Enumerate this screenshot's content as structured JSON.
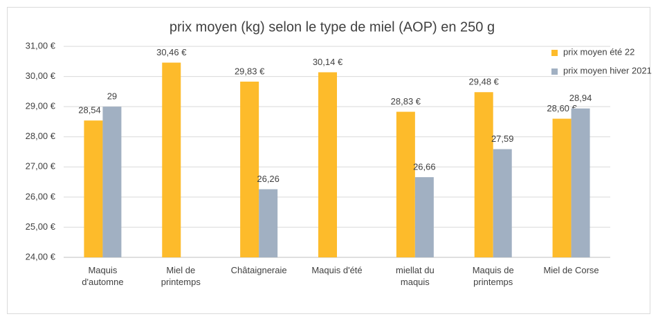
{
  "chart_data": {
    "type": "bar",
    "title": "prix moyen (kg) selon le type de miel (AOP) en 250 g",
    "categories": [
      "Maquis d'automne",
      "Miel de printemps",
      "Châtaigneraie",
      "Maquis d'été",
      "miellat du maquis",
      "Maquis de printemps",
      "Miel de Corse"
    ],
    "series": [
      {
        "name": "prix moyen été  22",
        "color": "#fdbb2b",
        "values": [
          28.54,
          30.46,
          29.83,
          30.14,
          28.83,
          29.48,
          28.6
        ],
        "value_labels": [
          "28,54 €",
          "30,46 €",
          "29,83 €",
          "30,14 €",
          "28,83 €",
          "29,48 €",
          "28,60 €"
        ]
      },
      {
        "name": "prix moyen hiver 2021",
        "color": "#a1b0c2",
        "values": [
          29,
          null,
          26.26,
          null,
          26.66,
          27.59,
          28.94
        ],
        "value_labels": [
          "29",
          null,
          "26,26",
          null,
          "26,66",
          "27,59",
          "28,94"
        ]
      }
    ],
    "ylim": [
      24,
      31
    ],
    "yticks": [
      {
        "value": 24,
        "label": "24,00 €"
      },
      {
        "value": 25,
        "label": "25,00 €"
      },
      {
        "value": 26,
        "label": "26,00 €"
      },
      {
        "value": 27,
        "label": "27,00 €"
      },
      {
        "value": 28,
        "label": "28,00 €"
      },
      {
        "value": 29,
        "label": "29,00 €"
      },
      {
        "value": 30,
        "label": "30,00 €"
      },
      {
        "value": 31,
        "label": "31,00 €"
      }
    ],
    "grid": true,
    "legend": "top-right"
  }
}
